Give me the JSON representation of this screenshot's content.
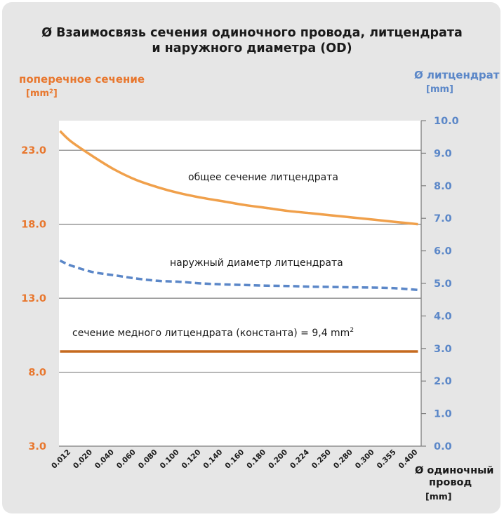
{
  "title_line1": "Ø Взаимосвязь сечения одиночного провода, литцендрата",
  "title_line2": "и наружного диаметра (OD)",
  "y_left": {
    "label": "поперечное сечение",
    "unit": "[mm",
    "unit_sup": "2",
    "unit_end": "]",
    "color": "#e8772e"
  },
  "y_right": {
    "label": "Ø литцендрат",
    "unit": "[mm]",
    "color": "#5b87c8"
  },
  "x_axis": {
    "label_line1": "Ø одиночный",
    "label_line2": "провод",
    "unit": "[mm]"
  },
  "annotations": {
    "total": "общее сечение литцендрата",
    "outer": "наружный диаметр литцендрата",
    "copper": "сечение медного литцендрата (константа) = 9,4 mm",
    "copper_sup": "2"
  },
  "chart_data": {
    "type": "line",
    "categories": [
      "0.012",
      "0.020",
      "0.040",
      "0.060",
      "0.080",
      "0.100",
      "0.120",
      "0.140",
      "0.160",
      "0.180",
      "0.200",
      "0.224",
      "0.250",
      "0.280",
      "0.300",
      "0.355",
      "0.400"
    ],
    "y_left_ticks": [
      "3.0",
      "8.0",
      "13.0",
      "18.0",
      "23.0"
    ],
    "y_right_ticks": [
      "0.0",
      "1.0",
      "2.0",
      "3.0",
      "4.0",
      "5.0",
      "6.0",
      "7.0",
      "8.0",
      "9.0",
      "10.0"
    ],
    "ylim_left": [
      3,
      25
    ],
    "ylim_right": [
      0,
      10
    ],
    "grid": "horizontal at left-axis ticks",
    "series": [
      {
        "axis": "left",
        "color": "#f0a04b",
        "style": "solid",
        "x": [
          0.008,
          0.012,
          0.02,
          0.04,
          0.06,
          0.08,
          0.1,
          0.12,
          0.14,
          0.16,
          0.18,
          0.2,
          0.224,
          0.25,
          0.28,
          0.3,
          0.355,
          0.4
        ],
        "values": [
          24.3,
          23.6,
          22.6,
          21.7,
          21.0,
          20.5,
          20.1,
          19.8,
          19.55,
          19.3,
          19.1,
          18.9,
          18.75,
          18.6,
          18.45,
          18.3,
          18.15,
          18.0
        ]
      },
      {
        "axis": "right",
        "color": "#5b87c8",
        "style": "dashed",
        "x": [
          0.008,
          0.012,
          0.02,
          0.04,
          0.06,
          0.08,
          0.1,
          0.12,
          0.14,
          0.16,
          0.18,
          0.2,
          0.224,
          0.25,
          0.28,
          0.3,
          0.355,
          0.4
        ],
        "values": [
          5.7,
          5.55,
          5.35,
          5.25,
          5.15,
          5.08,
          5.05,
          5.0,
          4.97,
          4.95,
          4.93,
          4.92,
          4.9,
          4.89,
          4.88,
          4.87,
          4.85,
          4.8
        ]
      },
      {
        "axis": "left",
        "color": "#c56a1f",
        "style": "solid",
        "x": [
          0.008,
          0.4
        ],
        "values": [
          9.4,
          9.4
        ]
      }
    ]
  }
}
